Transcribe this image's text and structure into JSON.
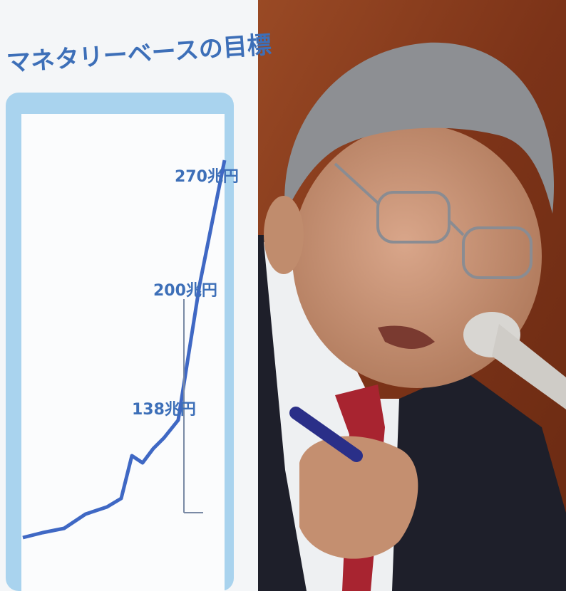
{
  "poster": {
    "title": "マネタリーベースの目標",
    "labels": [
      "270兆円",
      "200兆円",
      "138兆円"
    ]
  }
}
